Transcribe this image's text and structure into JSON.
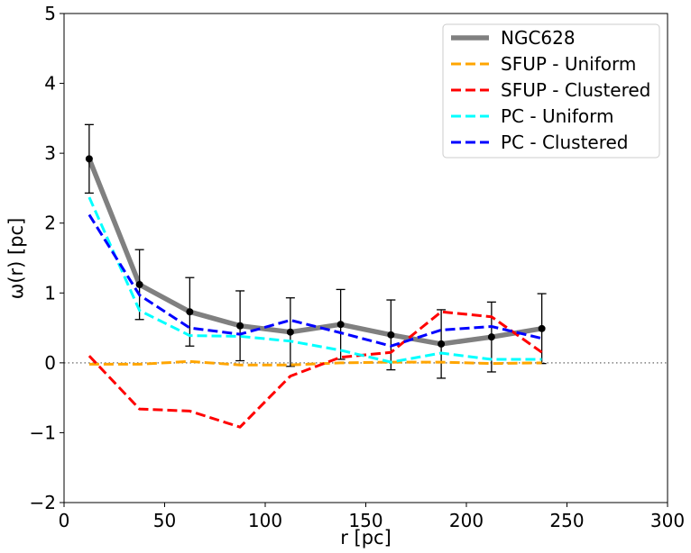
{
  "chart_data": {
    "type": "line",
    "title": "",
    "xlabel": "r [pc]",
    "ylabel": "ω(r) [pc]",
    "xlim": [
      0,
      300
    ],
    "ylim": [
      -2,
      5
    ],
    "xticks": [
      0,
      50,
      100,
      150,
      200,
      250,
      300
    ],
    "yticks": [
      -2,
      -1,
      0,
      1,
      2,
      3,
      4,
      5
    ],
    "xtick_labels": [
      "0",
      "50",
      "100",
      "150",
      "200",
      "250",
      "300"
    ],
    "ytick_labels": [
      "−2",
      "−1",
      "0",
      "1",
      "2",
      "3",
      "4",
      "5"
    ],
    "reference_line": {
      "y": 0,
      "style": "dotted",
      "color": "#808080"
    },
    "legend_position": "upper-right",
    "x": [
      12.5,
      37.5,
      62.5,
      87.5,
      112.5,
      137.5,
      162.5,
      187.5,
      212.5,
      237.5
    ],
    "series": [
      {
        "name": "NGC628",
        "color": "#808080",
        "style": "solid",
        "values": [
          2.92,
          1.12,
          0.73,
          0.53,
          0.44,
          0.55,
          0.4,
          0.27,
          0.37,
          0.49
        ],
        "errors": [
          0.49,
          0.5,
          0.49,
          0.5,
          0.49,
          0.5,
          0.5,
          0.49,
          0.5,
          0.5
        ],
        "markers": true
      },
      {
        "name": "SFUP - Uniform",
        "color": "#ffa500",
        "style": "dashed",
        "values": [
          -0.02,
          -0.02,
          0.02,
          -0.03,
          -0.03,
          0.0,
          0.01,
          0.01,
          -0.01,
          0.0
        ]
      },
      {
        "name": "SFUP - Clustered",
        "color": "#ff0000",
        "style": "dashed",
        "values": [
          0.1,
          -0.66,
          -0.69,
          -0.92,
          -0.19,
          0.08,
          0.15,
          0.73,
          0.66,
          0.15
        ]
      },
      {
        "name": "PC - Uniform",
        "color": "#00ffff",
        "style": "dashed",
        "values": [
          2.37,
          0.75,
          0.39,
          0.38,
          0.31,
          0.18,
          0.01,
          0.14,
          0.05,
          0.05
        ]
      },
      {
        "name": "PC - Clustered",
        "color": "#0000ff",
        "style": "dashed",
        "values": [
          2.12,
          0.97,
          0.5,
          0.41,
          0.61,
          0.43,
          0.24,
          0.47,
          0.52,
          0.35
        ]
      }
    ]
  }
}
